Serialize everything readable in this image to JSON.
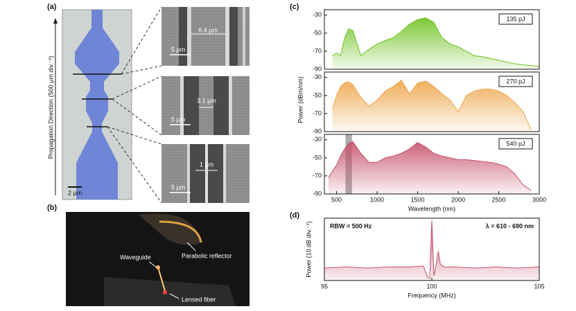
{
  "figure": {
    "a": {
      "label": "(a)",
      "axis_label": "Propagation Direction (500 µm div.⁻¹)",
      "scale_bar": "2 µm",
      "sem": [
        {
          "width": "6.4 µm",
          "scale_bar": "5 µm"
        },
        {
          "width": "3.1 µm",
          "scale_bar": "5 µm"
        },
        {
          "width": "1 µm",
          "scale_bar": "5 µm"
        }
      ]
    },
    "b": {
      "label": "(b)",
      "annotations": [
        "Waveguide",
        "Parabolic reflector",
        "Lensed fiber"
      ]
    }
  },
  "chart_data": [
    {
      "type": "line",
      "panel_label": "(c)",
      "x": [
        400,
        450,
        500,
        550,
        600,
        650,
        700,
        800,
        900,
        1000,
        1100,
        1200,
        1300,
        1400,
        1500,
        1600,
        1700,
        1800,
        1900,
        2000,
        2100,
        2200,
        2300,
        2400,
        2500,
        2600,
        2700,
        2800,
        2900,
        3000
      ],
      "xlim": [
        350,
        3000
      ],
      "ylim": [
        -90,
        -24
      ],
      "yticks": [
        -30,
        -50,
        -70,
        -90
      ],
      "series": [
        {
          "name": "135 pJ",
          "color": "#6cc21e",
          "values": [
            null,
            -75,
            -72,
            -75,
            -55,
            -45,
            -47,
            -75,
            -68,
            -62,
            -58,
            -55,
            -48,
            -40,
            -35,
            -33,
            -38,
            -55,
            -62,
            -65,
            -70,
            -75,
            -76,
            -78,
            -80,
            -82,
            -84,
            -85,
            -86,
            -87
          ]
        }
      ]
    },
    {
      "type": "line",
      "ylabel": "Power (dBm/nm)",
      "x": [
        400,
        450,
        500,
        550,
        600,
        650,
        700,
        800,
        900,
        1000,
        1100,
        1200,
        1300,
        1400,
        1500,
        1600,
        1700,
        1800,
        1900,
        2000,
        2100,
        2200,
        2300,
        2400,
        2500,
        2600,
        2700,
        2800,
        2900,
        3000
      ],
      "xlim": [
        350,
        3000
      ],
      "ylim": [
        -90,
        -24
      ],
      "yticks": [
        -30,
        -50,
        -70,
        -90
      ],
      "series": [
        {
          "name": "270 pJ",
          "color": "#eda54a",
          "values": [
            null,
            -65,
            -50,
            -40,
            -36,
            -35,
            -38,
            -52,
            -62,
            -55,
            -45,
            -40,
            -33,
            -48,
            -36,
            -34,
            -40,
            -48,
            -55,
            -68,
            -50,
            -45,
            -43,
            -43,
            -45,
            -50,
            -58,
            -68,
            -88,
            null
          ]
        }
      ]
    },
    {
      "type": "line",
      "xlabel": "Wavelength (nm)",
      "x": [
        400,
        450,
        500,
        550,
        600,
        650,
        700,
        800,
        900,
        1000,
        1100,
        1200,
        1300,
        1400,
        1500,
        1600,
        1700,
        1800,
        1900,
        2000,
        2100,
        2200,
        2300,
        2400,
        2500,
        2600,
        2700,
        2800,
        2900,
        3000
      ],
      "xlim": [
        350,
        3000
      ],
      "xticks": [
        500,
        1000,
        1500,
        2000,
        2500,
        3000
      ],
      "ylim": [
        -90,
        -24
      ],
      "yticks": [
        -30,
        -50,
        -70,
        -90
      ],
      "highlight": [
        610,
        690
      ],
      "series": [
        {
          "name": "540 pJ",
          "color": "#c5506a",
          "values": [
            -72,
            -65,
            -58,
            -48,
            -40,
            -34,
            -32,
            -45,
            -55,
            -55,
            -50,
            -48,
            -45,
            -40,
            -33,
            -38,
            -45,
            -48,
            -50,
            -52,
            -52,
            -53,
            -54,
            -55,
            -57,
            -60,
            -68,
            -80,
            -86,
            null
          ]
        }
      ]
    },
    {
      "type": "line",
      "panel_label": "(d)",
      "xlabel": "Frequency (MHz)",
      "ylabel": "Power (10 dB div.⁻¹)",
      "annotations": [
        "RBW = 500 Hz",
        "λ = 610 - 690 nm"
      ],
      "x": [
        95,
        96,
        97,
        98,
        99,
        99.6,
        99.8,
        99.9,
        100,
        100.1,
        100.2,
        100.3,
        100.4,
        100.6,
        101,
        102,
        103,
        104,
        105
      ],
      "xlim": [
        95,
        105
      ],
      "xticks": [
        95,
        100,
        105
      ],
      "ylim": [
        0,
        5.5
      ],
      "series": [
        {
          "color": "#c5506a",
          "values": [
            1.1,
            1.2,
            1.1,
            1.2,
            1.2,
            1.3,
            0.3,
            0.2,
            5.3,
            0.4,
            1.4,
            2.6,
            1.4,
            1.2,
            1.2,
            1.1,
            1.2,
            1.1,
            1.2
          ]
        }
      ]
    }
  ]
}
